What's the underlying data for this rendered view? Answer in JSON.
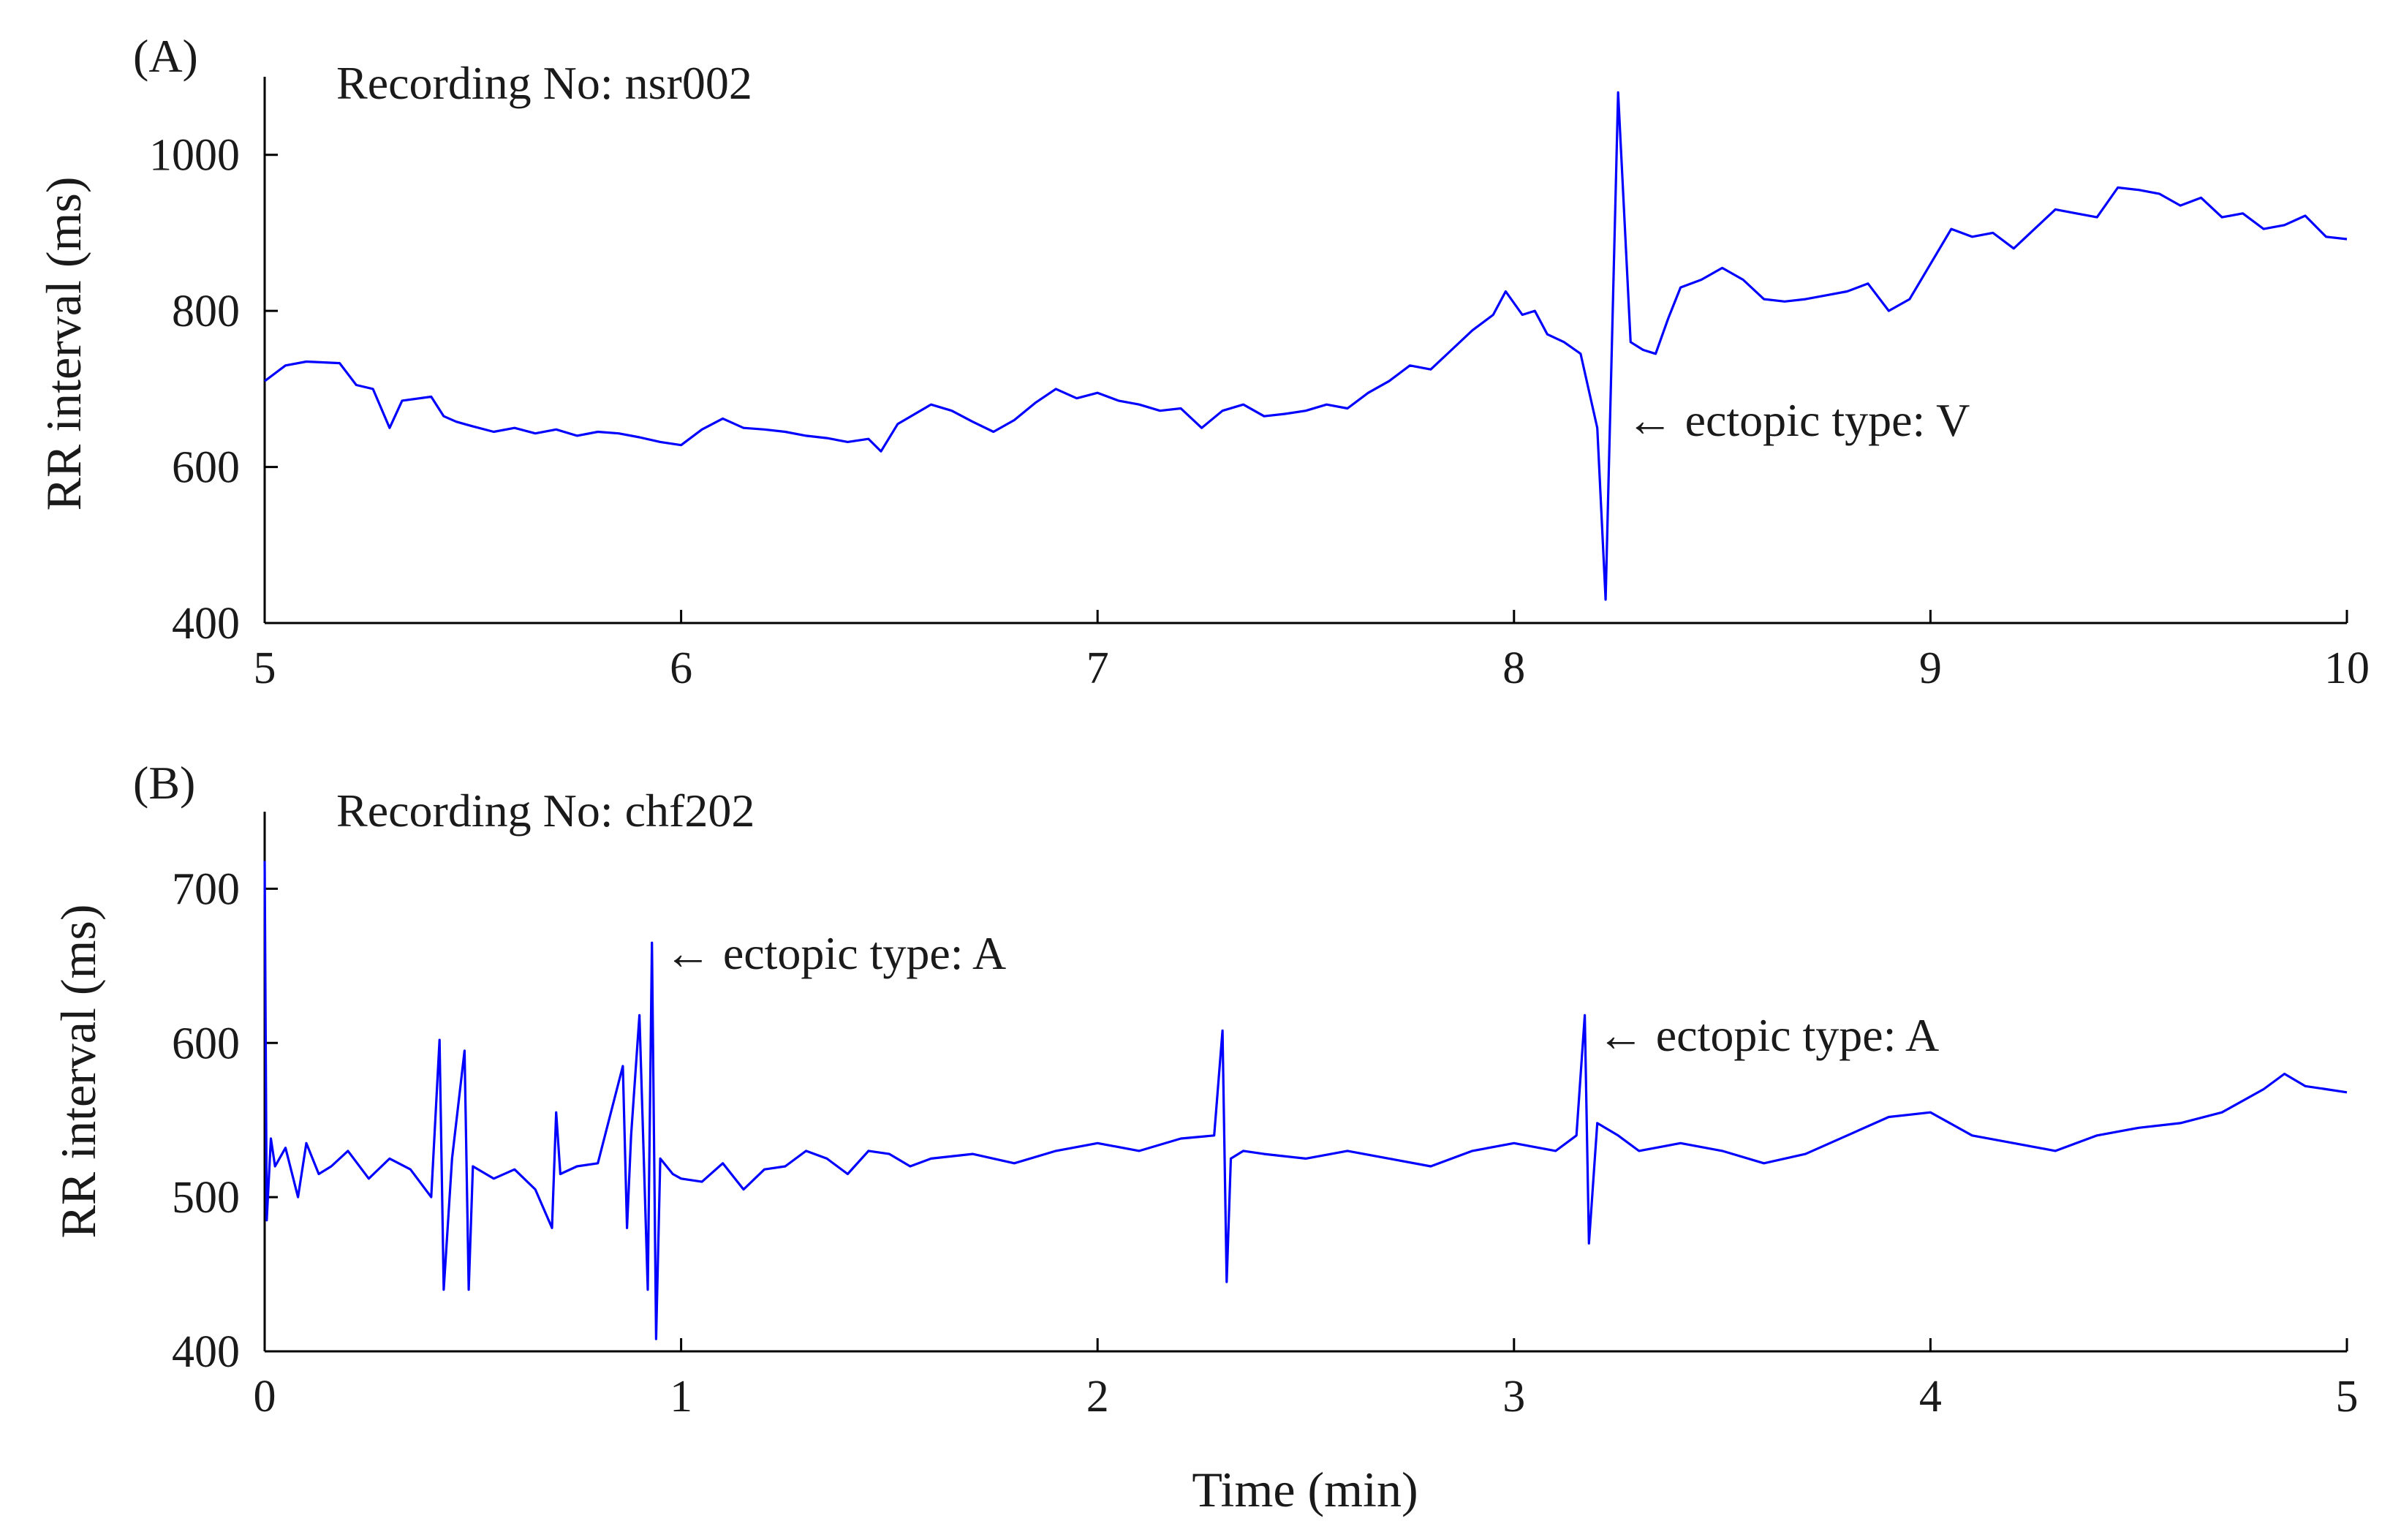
{
  "figure": {
    "xlabel": "Time (min)"
  },
  "chart_data": [
    {
      "type": "line",
      "panel_label": "(A)",
      "title": "Recording No: nsr002",
      "xlabel": "",
      "ylabel": "RR interval (ms)",
      "xlim": [
        5,
        10
      ],
      "ylim": [
        400,
        1100
      ],
      "xticks": [
        5,
        6,
        7,
        8,
        9,
        10
      ],
      "yticks": [
        400,
        600,
        800,
        1000
      ],
      "grid": false,
      "color": "#0000ff",
      "series": [
        {
          "x": [
            5.0,
            5.05,
            5.1,
            5.18,
            5.22,
            5.26,
            5.3,
            5.33,
            5.4,
            5.43,
            5.46,
            5.5,
            5.55,
            5.6,
            5.65,
            5.7,
            5.75,
            5.8,
            5.85,
            5.9,
            5.95,
            6.0,
            6.05,
            6.1,
            6.15,
            6.2,
            6.25,
            6.3,
            6.35,
            6.4,
            6.45,
            6.48,
            6.52,
            6.6,
            6.65,
            6.7,
            6.75,
            6.8,
            6.85,
            6.9,
            6.95,
            7.0,
            7.05,
            7.1,
            7.15,
            7.2,
            7.25,
            7.3,
            7.35,
            7.4,
            7.45,
            7.5,
            7.55,
            7.6,
            7.65,
            7.7,
            7.75,
            7.8,
            7.85,
            7.9,
            7.95,
            7.98,
            8.02,
            8.05,
            8.08,
            8.12,
            8.16,
            8.2,
            8.22,
            8.25,
            8.28,
            8.31,
            8.34,
            8.37,
            8.4,
            8.45,
            8.5,
            8.55,
            8.6,
            8.65,
            8.7,
            8.75,
            8.8,
            8.85,
            8.9,
            8.95,
            9.0,
            9.05,
            9.1,
            9.15,
            9.2,
            9.25,
            9.3,
            9.35,
            9.4,
            9.45,
            9.5,
            9.55,
            9.6,
            9.65,
            9.7,
            9.75,
            9.8,
            9.85,
            9.9,
            9.95,
            10.0
          ],
          "y": [
            710,
            730,
            735,
            733,
            705,
            700,
            650,
            685,
            690,
            665,
            658,
            652,
            645,
            650,
            643,
            648,
            640,
            645,
            643,
            638,
            632,
            628,
            648,
            662,
            650,
            648,
            645,
            640,
            637,
            632,
            636,
            620,
            655,
            680,
            672,
            658,
            645,
            660,
            682,
            700,
            688,
            695,
            685,
            680,
            672,
            675,
            650,
            672,
            680,
            665,
            668,
            672,
            680,
            675,
            695,
            710,
            730,
            725,
            750,
            775,
            795,
            825,
            795,
            800,
            770,
            760,
            745,
            650,
            430,
            1080,
            760,
            750,
            745,
            790,
            830,
            840,
            855,
            840,
            815,
            812,
            815,
            820,
            825,
            835,
            800,
            815,
            860,
            905,
            895,
            900,
            880,
            905,
            930,
            925,
            920,
            958,
            955,
            950,
            935,
            945,
            920,
            925,
            905,
            910,
            922,
            895,
            892
          ]
        }
      ],
      "annotations": [
        {
          "text": "← ectopic type: V",
          "x": 8.27,
          "y": 640
        }
      ]
    },
    {
      "type": "line",
      "panel_label": "(B)",
      "title": "Recording No: chf202",
      "xlabel": "Time (min)",
      "ylabel": "RR interval (ms)",
      "xlim": [
        0,
        5
      ],
      "ylim": [
        400,
        750
      ],
      "xticks": [
        0,
        1,
        2,
        3,
        4,
        5
      ],
      "yticks": [
        400,
        500,
        600,
        700
      ],
      "grid": false,
      "color": "#0000ff",
      "series": [
        {
          "x": [
            0.0,
            0.005,
            0.015,
            0.025,
            0.05,
            0.08,
            0.1,
            0.13,
            0.16,
            0.2,
            0.25,
            0.3,
            0.35,
            0.4,
            0.42,
            0.43,
            0.45,
            0.48,
            0.49,
            0.5,
            0.55,
            0.6,
            0.65,
            0.69,
            0.7,
            0.71,
            0.75,
            0.8,
            0.86,
            0.87,
            0.88,
            0.9,
            0.92,
            0.93,
            0.94,
            0.95,
            0.98,
            1.0,
            1.05,
            1.1,
            1.15,
            1.2,
            1.25,
            1.3,
            1.35,
            1.4,
            1.45,
            1.5,
            1.55,
            1.6,
            1.7,
            1.8,
            1.9,
            2.0,
            2.1,
            2.2,
            2.28,
            2.3,
            2.31,
            2.32,
            2.35,
            2.4,
            2.5,
            2.6,
            2.7,
            2.8,
            2.9,
            3.0,
            3.1,
            3.15,
            3.17,
            3.18,
            3.2,
            3.25,
            3.3,
            3.4,
            3.5,
            3.6,
            3.7,
            3.8,
            3.9,
            4.0,
            4.1,
            4.2,
            4.3,
            4.4,
            4.5,
            4.6,
            4.7,
            4.8,
            4.85,
            4.9,
            4.95,
            5.0
          ],
          "y": [
            718,
            485,
            538,
            520,
            532,
            500,
            535,
            515,
            520,
            530,
            512,
            525,
            518,
            500,
            602,
            440,
            525,
            595,
            440,
            520,
            512,
            518,
            505,
            480,
            555,
            515,
            520,
            522,
            585,
            480,
            540,
            618,
            440,
            665,
            408,
            525,
            515,
            512,
            510,
            522,
            505,
            518,
            520,
            530,
            525,
            515,
            530,
            528,
            520,
            525,
            528,
            522,
            530,
            535,
            530,
            538,
            540,
            608,
            445,
            525,
            530,
            528,
            525,
            530,
            525,
            520,
            530,
            535,
            530,
            540,
            618,
            470,
            548,
            540,
            530,
            535,
            530,
            522,
            528,
            540,
            552,
            555,
            540,
            535,
            530,
            540,
            545,
            548,
            555,
            570,
            580,
            572,
            570,
            568
          ]
        }
      ],
      "annotations": [
        {
          "text": "← ectopic type: A",
          "x": 0.96,
          "y": 648
        },
        {
          "text": "← ectopic type: A",
          "x": 3.2,
          "y": 595
        }
      ]
    }
  ]
}
